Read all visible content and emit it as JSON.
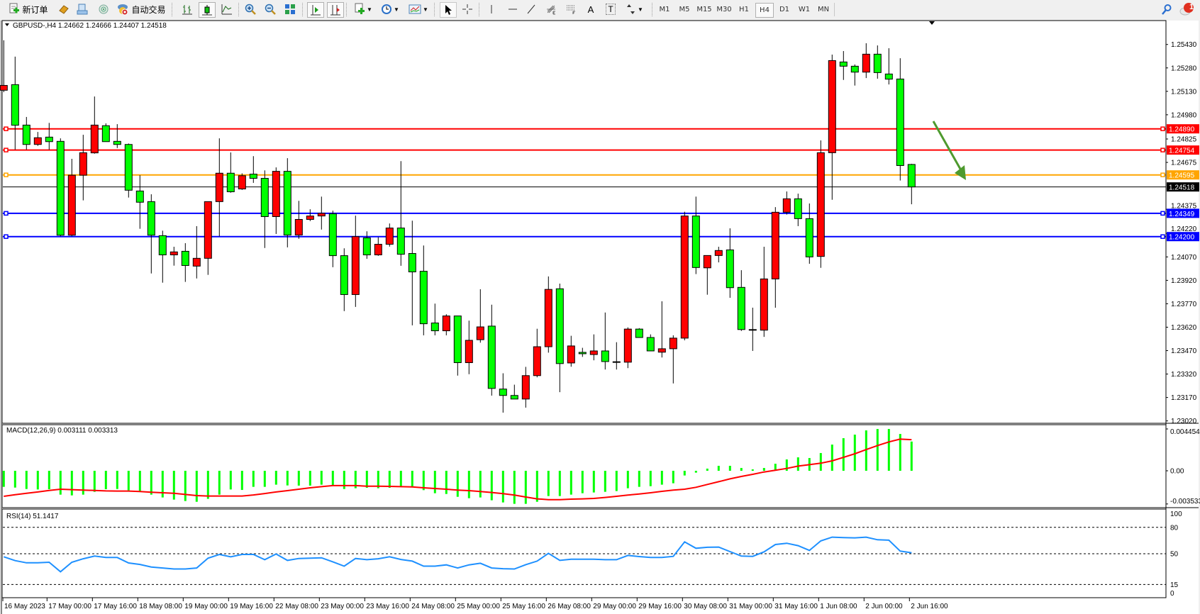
{
  "toolbar": {
    "new_order_label": "新订单",
    "autotrading_label": "自动交易",
    "icons": [
      "new-order-icon",
      "market-watch-icon",
      "data-window-icon",
      "navigator-icon",
      "autotrading-icon",
      "bar-chart-icon",
      "candlestick-icon",
      "line-chart-icon",
      "zoom-in-icon",
      "zoom-out-icon",
      "tile-windows-icon",
      "chart-shift-icon",
      "autoscroll-icon",
      "new-chart-icon",
      "periods-clock-icon",
      "templates-icon",
      "cursor-icon",
      "crosshair-icon",
      "vertical-line-icon",
      "horizontal-line-icon",
      "trendline-icon",
      "fibonacci-icon",
      "gann-icon",
      "text-icon",
      "text-label-icon",
      "arrows-icon",
      "search-icon",
      "notification-icon"
    ],
    "text_tool": "A",
    "text_label_tool": "T",
    "timeframes": [
      "M1",
      "M5",
      "M15",
      "M30",
      "H1",
      "H4",
      "D1",
      "W1",
      "MN"
    ],
    "active_timeframe": "H4",
    "notification_count": "1"
  },
  "chart": {
    "header": "GBPUSD-,H4  1.24662 1.24666 1.24407 1.24518",
    "symbol": "GBPUSD-",
    "period": "H4",
    "bull_color": "#ff0000",
    "bear_color": "#00ff00",
    "price_ticks": [
      "1.25430",
      "1.25280",
      "1.25130",
      "1.24980",
      "1.24825",
      "1.24675",
      "1.24375",
      "1.24220",
      "1.24070",
      "1.23920",
      "1.23770",
      "1.23620",
      "1.23470",
      "1.23320",
      "1.23170",
      "1.23020"
    ],
    "levels": [
      {
        "price": "1.24890",
        "color": "#ff0000"
      },
      {
        "price": "1.24754",
        "color": "#ff0000"
      },
      {
        "price": "1.24595",
        "color": "#ffa500"
      },
      {
        "price": "1.24349",
        "color": "#0000ff"
      },
      {
        "price": "1.24200",
        "color": "#0000ff"
      }
    ],
    "bid": {
      "price": "1.24518",
      "color": "#000000"
    },
    "arrow": {
      "color": "#4e9a2e",
      "direction": "down"
    },
    "time_labels": [
      {
        "bar": 0,
        "text": "16 May 2023"
      },
      {
        "bar": 4,
        "text": "17 May 00:00"
      },
      {
        "bar": 8,
        "text": "17 May 16:00"
      },
      {
        "bar": 12,
        "text": "18 May 08:00"
      },
      {
        "bar": 16,
        "text": "19 May 00:00"
      },
      {
        "bar": 20,
        "text": "19 May 16:00"
      },
      {
        "bar": 24,
        "text": "22 May 08:00"
      },
      {
        "bar": 28,
        "text": "23 May 00:00"
      },
      {
        "bar": 32,
        "text": "23 May 16:00"
      },
      {
        "bar": 36,
        "text": "24 May 08:00"
      },
      {
        "bar": 40,
        "text": "25 May 00:00"
      },
      {
        "bar": 44,
        "text": "25 May 16:00"
      },
      {
        "bar": 48,
        "text": "26 May 08:00"
      },
      {
        "bar": 52,
        "text": "29 May 00:00"
      },
      {
        "bar": 56,
        "text": "29 May 16:00"
      },
      {
        "bar": 60,
        "text": "30 May 08:00"
      },
      {
        "bar": 64,
        "text": "31 May 00:00"
      },
      {
        "bar": 68,
        "text": "31 May 16:00"
      },
      {
        "bar": 72,
        "text": "1 Jun 08:00"
      },
      {
        "bar": 76,
        "text": "2 Jun 00:00"
      },
      {
        "bar": 80,
        "text": "2 Jun 16:00"
      }
    ]
  },
  "chart_data": {
    "type": "candlestick",
    "ohlc_order": [
      "open",
      "high",
      "low",
      "close"
    ],
    "ylim": [
      1.2302,
      1.2543
    ],
    "candles": [
      [
        1.25137,
        1.25457,
        1.25125,
        1.25168
      ],
      [
        1.25173,
        1.25352,
        1.24757,
        1.24913
      ],
      [
        1.24914,
        1.24966,
        1.24757,
        1.2479
      ],
      [
        1.2479,
        1.2487,
        1.24781,
        1.24833
      ],
      [
        1.24837,
        1.24928,
        1.24757,
        1.24808
      ],
      [
        1.2481,
        1.24829,
        1.24202,
        1.24209
      ],
      [
        1.24209,
        1.24698,
        1.24202,
        1.24593
      ],
      [
        1.24593,
        1.24852,
        1.24432,
        1.24737
      ],
      [
        1.24736,
        1.25097,
        1.24731,
        1.24914
      ],
      [
        1.2491,
        1.24925,
        1.24808,
        1.24808
      ],
      [
        1.2481,
        1.2492,
        1.24767,
        1.2479
      ],
      [
        1.2479,
        1.24796,
        1.2445,
        1.24497
      ],
      [
        1.24492,
        1.24593,
        1.2425,
        1.2442
      ],
      [
        1.24424,
        1.24471,
        1.23964,
        1.24209
      ],
      [
        1.24206,
        1.24238,
        1.23905,
        1.24083
      ],
      [
        1.24083,
        1.24135,
        1.24014,
        1.24102
      ],
      [
        1.24106,
        1.24158,
        1.2391,
        1.24015
      ],
      [
        1.24011,
        1.24267,
        1.23932,
        1.24061
      ],
      [
        1.24061,
        1.24424,
        1.23955,
        1.24424
      ],
      [
        1.24424,
        1.24829,
        1.24202,
        1.24606
      ],
      [
        1.24606,
        1.24739,
        1.24481,
        1.24487
      ],
      [
        1.24505,
        1.24605,
        1.24499,
        1.2459
      ],
      [
        1.246,
        1.24715,
        1.24544,
        1.24573
      ],
      [
        1.24573,
        1.24624,
        1.24127,
        1.24328
      ],
      [
        1.24328,
        1.24643,
        1.24217,
        1.24618
      ],
      [
        1.24618,
        1.24702,
        1.24131,
        1.2421
      ],
      [
        1.2421,
        1.24429,
        1.24186,
        1.2431
      ],
      [
        1.2431,
        1.24375,
        1.24299,
        1.24332
      ],
      [
        1.24332,
        1.24456,
        1.24245,
        1.24349
      ],
      [
        1.24346,
        1.24366,
        1.24004,
        1.24078
      ],
      [
        1.24078,
        1.24125,
        1.23723,
        1.23829
      ],
      [
        1.23829,
        1.24334,
        1.2375,
        1.242
      ],
      [
        1.24192,
        1.24234,
        1.24058,
        1.24083
      ],
      [
        1.24083,
        1.24196,
        1.24077,
        1.24151
      ],
      [
        1.24151,
        1.24284,
        1.24136,
        1.24255
      ],
      [
        1.24255,
        1.24683,
        1.24013,
        1.24087
      ],
      [
        1.24092,
        1.24302,
        1.23632,
        1.23974
      ],
      [
        1.23978,
        1.24143,
        1.23568,
        1.23642
      ],
      [
        1.23647,
        1.23771,
        1.23568,
        1.23597
      ],
      [
        1.23597,
        1.23703,
        1.23568,
        1.23692
      ],
      [
        1.23692,
        1.23692,
        1.2331,
        1.23393
      ],
      [
        1.23393,
        1.23662,
        1.23319,
        1.23536
      ],
      [
        1.2354,
        1.23863,
        1.23521,
        1.23622
      ],
      [
        1.23627,
        1.23764,
        1.23182,
        1.23228
      ],
      [
        1.23224,
        1.23325,
        1.23073,
        1.23183
      ],
      [
        1.23183,
        1.23252,
        1.2316,
        1.2316
      ],
      [
        1.2316,
        1.23366,
        1.23105,
        1.2331
      ],
      [
        1.2331,
        1.2361,
        1.23299,
        1.23495
      ],
      [
        1.23495,
        1.23945,
        1.23457,
        1.23862
      ],
      [
        1.23866,
        1.23899,
        1.23204,
        1.23387
      ],
      [
        1.23391,
        1.23565,
        1.23367,
        1.235
      ],
      [
        1.23459,
        1.23488,
        1.2343,
        1.2345
      ],
      [
        1.23445,
        1.23574,
        1.23408,
        1.23468
      ],
      [
        1.23468,
        1.23714,
        1.23349,
        1.234
      ],
      [
        1.23399,
        1.23524,
        1.23349,
        1.23399
      ],
      [
        1.23396,
        1.23619,
        1.23358,
        1.23608
      ],
      [
        1.23608,
        1.23614,
        1.23554,
        1.23554
      ],
      [
        1.23554,
        1.23574,
        1.23468,
        1.23468
      ],
      [
        1.2346,
        1.23786,
        1.23426,
        1.23482
      ],
      [
        1.23482,
        1.23568,
        1.2326,
        1.2355
      ],
      [
        1.2355,
        1.24359,
        1.23536,
        1.24332
      ],
      [
        1.24332,
        1.24456,
        1.2396,
        1.24002
      ],
      [
        1.24,
        1.24079,
        1.23828,
        1.24079
      ],
      [
        1.24079,
        1.24135,
        1.24035,
        1.24111
      ],
      [
        1.24115,
        1.24253,
        1.23808,
        1.23873
      ],
      [
        1.23875,
        1.23985,
        1.23596,
        1.23605
      ],
      [
        1.23605,
        1.23745,
        1.23468,
        1.23605
      ],
      [
        1.23601,
        1.24135,
        1.23558,
        1.23929
      ],
      [
        1.23929,
        1.24389,
        1.23745,
        1.24356
      ],
      [
        1.24356,
        1.24489,
        1.24341,
        1.24442
      ],
      [
        1.24442,
        1.24475,
        1.24267,
        1.24315
      ],
      [
        1.24315,
        1.24412,
        1.24026,
        1.2407
      ],
      [
        1.24073,
        1.24816,
        1.24,
        1.24737
      ],
      [
        1.24737,
        1.25365,
        1.24436,
        1.25327
      ],
      [
        1.25318,
        1.25388,
        1.25203,
        1.25291
      ],
      [
        1.25291,
        1.25302,
        1.25167,
        1.25253
      ],
      [
        1.25253,
        1.25438,
        1.25215,
        1.25368
      ],
      [
        1.25368,
        1.25424,
        1.25211,
        1.2525
      ],
      [
        1.25241,
        1.25406,
        1.25174,
        1.25208
      ],
      [
        1.25209,
        1.25342,
        1.24559,
        1.24655
      ],
      [
        1.24662,
        1.24666,
        1.24407,
        1.24518
      ]
    ],
    "macd": {
      "label": "MACD(12,26,9) 0.003111 0.003313",
      "ticks": [
        "0.004454",
        "0.00",
        "-0.003533"
      ],
      "ylim": [
        -0.003533,
        0.004454
      ],
      "hist_color": "#00ff00",
      "signal_color": "#ff0000",
      "main": [
        -1.71,
        -1.79,
        -1.94,
        -1.99,
        -1.96,
        -2.54,
        -2.62,
        -2.54,
        -2.24,
        -1.96,
        -1.94,
        -2.09,
        -2.16,
        -2.54,
        -2.84,
        -3.07,
        -3.22,
        -3.3,
        -2.99,
        -2.54,
        -1.99,
        -2.04,
        -1.71,
        -1.71,
        -1.48,
        -1.56,
        -1.58,
        -1.58,
        -1.48,
        -1.58,
        -1.94,
        -1.86,
        -1.81,
        -1.86,
        -1.81,
        -1.71,
        -1.71,
        -2.06,
        -2.39,
        -2.47,
        -2.77,
        -2.92,
        -2.84,
        -3.14,
        -3.37,
        -3.52,
        -3.52,
        -3.3,
        -2.69,
        -2.69,
        -2.54,
        -2.39,
        -2.31,
        -2.24,
        -2.16,
        -1.86,
        -1.71,
        -1.64,
        -1.48,
        -1.33,
        -0.5,
        -0.2,
        0.23,
        0.53,
        0.53,
        0.3,
        0.15,
        0.3,
        0.75,
        1.21,
        1.43,
        1.36,
        1.89,
        2.79,
        3.47,
        3.85,
        4.3,
        4.45,
        4.45,
        3.92,
        3.111
      ],
      "signal": [
        -2.72,
        -2.54,
        -2.39,
        -2.26,
        -2.09,
        -1.96,
        -2.01,
        -2.06,
        -2.09,
        -2.14,
        -2.16,
        -2.16,
        -2.21,
        -2.29,
        -2.34,
        -2.39,
        -2.52,
        -2.64,
        -2.69,
        -2.69,
        -2.69,
        -2.69,
        -2.57,
        -2.42,
        -2.26,
        -2.11,
        -1.96,
        -1.81,
        -1.69,
        -1.58,
        -1.58,
        -1.58,
        -1.64,
        -1.64,
        -1.66,
        -1.69,
        -1.71,
        -1.81,
        -1.89,
        -1.96,
        -2.06,
        -2.11,
        -2.21,
        -2.31,
        -2.44,
        -2.59,
        -2.79,
        -2.99,
        -3.07,
        -3.07,
        -3.02,
        -2.99,
        -2.94,
        -2.84,
        -2.72,
        -2.59,
        -2.47,
        -2.34,
        -2.19,
        -2.06,
        -1.96,
        -1.76,
        -1.46,
        -1.16,
        -0.86,
        -0.6,
        -0.38,
        -0.13,
        0.05,
        0.25,
        0.5,
        0.65,
        0.81,
        1.06,
        1.43,
        1.81,
        2.26,
        2.69,
        3.07,
        3.37,
        3.313
      ],
      "unit": "1e-3"
    },
    "rsi": {
      "label": "RSI(14) 51.1417",
      "ticks": [
        "100",
        "80",
        "50",
        "15",
        "0"
      ],
      "levels": [
        80,
        50,
        15
      ],
      "ylim": [
        0,
        100
      ],
      "color": "#1e90ff",
      "values": [
        46.5,
        42.2,
        39.7,
        39.7,
        40.3,
        29.5,
        40.3,
        44.3,
        47.3,
        45.7,
        45.7,
        39.5,
        37.8,
        34.9,
        33.8,
        32.7,
        32.7,
        33.8,
        44.9,
        49.2,
        46.5,
        49.2,
        49.2,
        43.2,
        49.7,
        42.4,
        44.6,
        44.9,
        45.4,
        40.8,
        35.9,
        44.6,
        43.2,
        44.3,
        46.5,
        43.5,
        41.6,
        35.9,
        35.9,
        37.3,
        33.8,
        37.3,
        39.2,
        33.8,
        33.0,
        32.7,
        37.6,
        41.6,
        50.5,
        42.4,
        43.8,
        43.8,
        43.8,
        43.2,
        43.2,
        48.1,
        46.8,
        45.7,
        45.7,
        47.0,
        63.5,
        56.2,
        57.3,
        57.6,
        52.4,
        47.3,
        47.0,
        52.2,
        60.5,
        61.9,
        59.2,
        53.8,
        64.6,
        68.9,
        68.4,
        68.1,
        68.9,
        65.9,
        65.4,
        53.0,
        51.14
      ]
    }
  }
}
